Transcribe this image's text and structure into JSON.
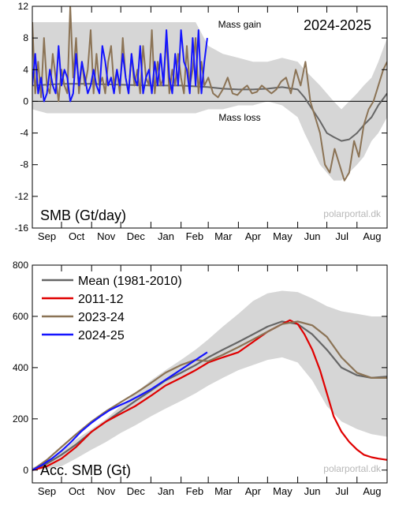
{
  "chart_data": [
    {
      "type": "line",
      "panel_label": "SMB (Gt/day)",
      "season_title": "2024-2025",
      "annotations": {
        "gain": "Mass gain",
        "loss": "Mass loss"
      },
      "credit": "polarportal.dk",
      "ylim": [
        -16,
        12
      ],
      "yticks": [
        -16,
        -12,
        -8,
        -4,
        0,
        4,
        8,
        12
      ],
      "xlim": [
        0,
        365
      ],
      "months": [
        "Sep",
        "Oct",
        "Nov",
        "Dec",
        "Jan",
        "Feb",
        "Mar",
        "Apr",
        "May",
        "Jun",
        "Jul",
        "Aug"
      ],
      "zero_line": true,
      "band": {
        "x": [
          0,
          15,
          30,
          45,
          61,
          76,
          91,
          106,
          122,
          137,
          153,
          168,
          181,
          196,
          212,
          227,
          242,
          257,
          273,
          280,
          288,
          296,
          303,
          310,
          318,
          326,
          334,
          341,
          349,
          356,
          365
        ],
        "lower": [
          -1,
          -1.5,
          -1.5,
          -1.5,
          -1.5,
          -1.5,
          -1.5,
          -1.5,
          -1.5,
          -1.5,
          -1.5,
          -1.5,
          -1,
          -1,
          -0.5,
          -0.5,
          0,
          -0.5,
          -2,
          -4,
          -6,
          -8,
          -9,
          -10,
          -10,
          -9,
          -8,
          -7,
          -5,
          -4,
          -2
        ],
        "upper": [
          10,
          10,
          10,
          10,
          10,
          10,
          10,
          10,
          10,
          10,
          10,
          10,
          7,
          6,
          5.5,
          5,
          5,
          5.5,
          5,
          4,
          3,
          2,
          1,
          0,
          -1,
          0,
          1,
          2,
          3,
          5,
          8
        ]
      },
      "series": [
        {
          "name": "Mean (1981-2010)",
          "color": "#666666",
          "x": [
            0,
            30,
            61,
            91,
            122,
            153,
            181,
            196,
            212,
            227,
            242,
            257,
            273,
            280,
            288,
            296,
            303,
            310,
            318,
            326,
            334,
            341,
            349,
            356,
            365
          ],
          "y": [
            2,
            2.2,
            2.2,
            2.1,
            2,
            2,
            1.8,
            1.6,
            1.5,
            1.5,
            1.6,
            1.8,
            1.5,
            0.5,
            -1,
            -2.5,
            -4,
            -4.5,
            -5,
            -4.8,
            -4,
            -3,
            -2,
            -0.5,
            1
          ]
        },
        {
          "name": "2023-24",
          "color": "#8b7355",
          "x": [
            0,
            3,
            6,
            9,
            12,
            15,
            18,
            21,
            24,
            27,
            30,
            33,
            36,
            39,
            42,
            45,
            48,
            51,
            54,
            57,
            60,
            63,
            66,
            69,
            72,
            75,
            78,
            81,
            84,
            87,
            90,
            93,
            96,
            99,
            102,
            105,
            108,
            111,
            114,
            117,
            120,
            123,
            126,
            129,
            132,
            135,
            138,
            141,
            144,
            147,
            150,
            153,
            156,
            159,
            162,
            165,
            168,
            171,
            174,
            177,
            181,
            186,
            191,
            196,
            201,
            206,
            211,
            216,
            221,
            226,
            231,
            236,
            241,
            246,
            251,
            256,
            261,
            266,
            271,
            276,
            281,
            286,
            291,
            296,
            301,
            306,
            311,
            316,
            321,
            326,
            331,
            336,
            341,
            346,
            351,
            356,
            361,
            365
          ],
          "y": [
            10,
            1,
            5,
            0.5,
            8,
            2,
            1,
            6,
            3,
            0,
            4,
            2,
            1,
            12,
            3,
            8,
            1,
            5,
            2,
            4,
            9,
            1,
            6,
            2,
            3,
            1,
            5,
            7,
            2,
            4,
            1,
            8,
            3,
            1,
            6,
            2,
            4,
            1,
            7,
            3,
            2,
            9,
            1,
            5,
            2,
            3,
            8,
            1,
            4,
            2,
            6,
            3,
            1,
            7,
            2,
            4,
            8,
            1,
            5,
            2,
            3,
            1,
            0.5,
            1.5,
            3,
            1,
            0.8,
            1.5,
            2,
            1,
            1.2,
            2,
            1.5,
            1,
            1.5,
            2.5,
            3,
            1,
            4,
            2,
            5,
            0,
            -2,
            -4,
            -8,
            -9,
            -6,
            -8,
            -10,
            -9,
            -5,
            -7,
            -3,
            -1,
            0,
            2,
            4,
            5
          ]
        },
        {
          "name": "2024-25",
          "color": "#1414ff",
          "x": [
            0,
            3,
            6,
            9,
            12,
            15,
            18,
            21,
            24,
            27,
            30,
            33,
            36,
            39,
            42,
            45,
            48,
            51,
            54,
            57,
            60,
            63,
            66,
            69,
            72,
            75,
            78,
            81,
            84,
            87,
            90,
            93,
            96,
            99,
            102,
            105,
            108,
            111,
            114,
            117,
            120,
            123,
            126,
            129,
            132,
            135,
            138,
            141,
            144,
            147,
            150,
            153,
            156,
            159,
            162,
            165,
            168,
            171,
            174,
            177,
            180
          ],
          "y": [
            2,
            6,
            1,
            3,
            0,
            1,
            4,
            2,
            1,
            7,
            2,
            4,
            3,
            0,
            1,
            6,
            2,
            5,
            3,
            1,
            2,
            4,
            2,
            1,
            7,
            5,
            2,
            3,
            1,
            4,
            2,
            6,
            3,
            1,
            6,
            3,
            2,
            7,
            1,
            3,
            4,
            1,
            5,
            2,
            6,
            2,
            9,
            3,
            1,
            6,
            2,
            9,
            5,
            4,
            1,
            8,
            2,
            9,
            1,
            5,
            8
          ]
        }
      ]
    },
    {
      "type": "line",
      "panel_label": "Acc. SMB (Gt)",
      "credit": "polarportal.dk",
      "ylim": [
        -50,
        800
      ],
      "yticks": [
        0,
        200,
        400,
        600,
        800
      ],
      "xlim": [
        0,
        365
      ],
      "months": [
        "Sep",
        "Oct",
        "Nov",
        "Dec",
        "Jan",
        "Feb",
        "Mar",
        "Apr",
        "May",
        "Jun",
        "Jul",
        "Aug"
      ],
      "legend_position": "top-left",
      "band": {
        "x": [
          0,
          15,
          30,
          45,
          61,
          76,
          91,
          106,
          122,
          137,
          153,
          168,
          181,
          196,
          212,
          227,
          242,
          257,
          273,
          288,
          303,
          318,
          334,
          349,
          365
        ],
        "lower": [
          0,
          5,
          15,
          45,
          80,
          110,
          145,
          175,
          210,
          240,
          270,
          300,
          330,
          360,
          390,
          410,
          430,
          440,
          420,
          350,
          250,
          190,
          160,
          140,
          130
        ],
        "upper": [
          10,
          30,
          70,
          120,
          160,
          200,
          250,
          300,
          350,
          390,
          430,
          470,
          510,
          560,
          610,
          660,
          690,
          700,
          695,
          670,
          640,
          620,
          610,
          600,
          600
        ]
      },
      "series": [
        {
          "name": "Mean (1981-2010)",
          "color": "#666666",
          "x": [
            0,
            15,
            30,
            45,
            61,
            76,
            91,
            106,
            122,
            137,
            153,
            168,
            181,
            196,
            212,
            227,
            242,
            257,
            273,
            288,
            303,
            318,
            334,
            349,
            365
          ],
          "y": [
            0,
            25,
            60,
            100,
            150,
            190,
            230,
            270,
            310,
            350,
            380,
            410,
            440,
            470,
            500,
            530,
            560,
            580,
            570,
            530,
            470,
            400,
            370,
            360,
            365
          ]
        },
        {
          "name": "2011-12",
          "color": "#e00000",
          "x": [
            0,
            15,
            30,
            45,
            61,
            76,
            91,
            106,
            122,
            137,
            153,
            168,
            181,
            196,
            212,
            227,
            242,
            257,
            265,
            273,
            280,
            288,
            296,
            303,
            310,
            318,
            326,
            334,
            341,
            349,
            356,
            365
          ],
          "y": [
            0,
            15,
            45,
            90,
            150,
            190,
            220,
            250,
            290,
            330,
            360,
            390,
            420,
            440,
            460,
            500,
            540,
            570,
            585,
            570,
            530,
            470,
            390,
            300,
            210,
            150,
            110,
            80,
            60,
            50,
            45,
            40
          ]
        },
        {
          "name": "2023-24",
          "color": "#8b7355",
          "x": [
            0,
            15,
            30,
            45,
            61,
            76,
            91,
            106,
            122,
            137,
            153,
            168,
            181,
            196,
            212,
            227,
            242,
            257,
            273,
            288,
            303,
            318,
            334,
            349,
            365
          ],
          "y": [
            0,
            40,
            90,
            140,
            190,
            230,
            265,
            300,
            340,
            380,
            410,
            430,
            425,
            450,
            480,
            510,
            540,
            570,
            580,
            565,
            520,
            440,
            380,
            360,
            360
          ]
        },
        {
          "name": "2024-25",
          "color": "#1414ff",
          "x": [
            0,
            10,
            20,
            30,
            40,
            50,
            61,
            70,
            80,
            91,
            100,
            110,
            122,
            130,
            140,
            150,
            160,
            170,
            180
          ],
          "y": [
            0,
            20,
            45,
            75,
            110,
            150,
            185,
            210,
            235,
            255,
            270,
            290,
            315,
            335,
            360,
            385,
            410,
            435,
            460
          ]
        }
      ]
    }
  ]
}
